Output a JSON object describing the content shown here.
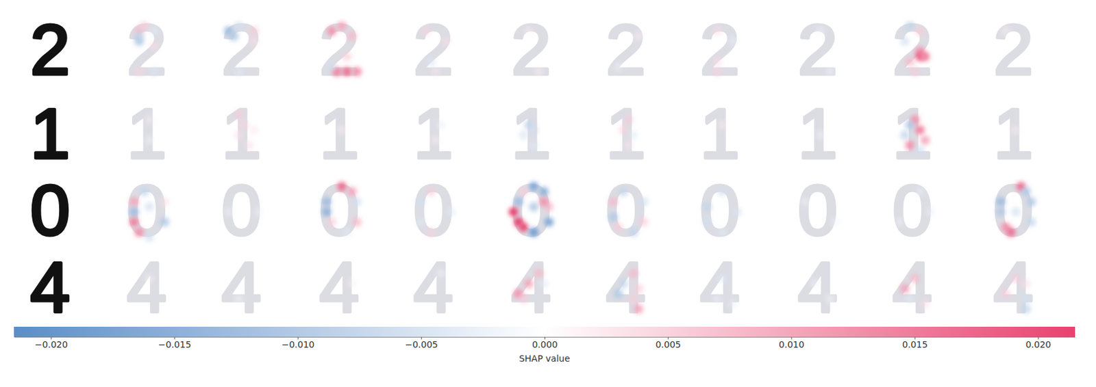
{
  "chart_data": {
    "type": "image_heatmap",
    "rows": [
      {
        "digit": "2",
        "panels": [
          [
            [
              3,
              5,
              0.008
            ],
            [
              2,
              6,
              0.006
            ],
            [
              4,
              5,
              -0.008
            ],
            [
              5,
              5,
              -0.01
            ],
            [
              3,
              8,
              -0.004
            ],
            [
              6,
              8,
              0.004
            ],
            [
              11,
              5,
              0.005
            ],
            [
              11,
              8,
              -0.005
            ]
          ],
          [
            [
              3,
              4,
              -0.012
            ],
            [
              4,
              5,
              -0.01
            ],
            [
              2,
              6,
              -0.006
            ],
            [
              3,
              9,
              0.006
            ],
            [
              5,
              9,
              0.004
            ],
            [
              11,
              6,
              -0.004
            ]
          ],
          [
            [
              3,
              5,
              0.012
            ],
            [
              2,
              7,
              0.01
            ],
            [
              4,
              9,
              0.008
            ],
            [
              8,
              8,
              0.006
            ],
            [
              11,
              6,
              0.014
            ],
            [
              11,
              8,
              0.016
            ],
            [
              11,
              10,
              0.012
            ],
            [
              10,
              5,
              -0.006
            ]
          ],
          [
            [
              3,
              5,
              0.005
            ],
            [
              5,
              9,
              0.004
            ],
            [
              9,
              6,
              -0.005
            ],
            [
              11,
              7,
              0.003
            ]
          ],
          [
            [
              3,
              6,
              0.002
            ],
            [
              11,
              8,
              0.002
            ]
          ],
          [
            [
              4,
              9,
              0.002
            ],
            [
              10,
              5,
              -0.002
            ]
          ],
          [
            [
              3,
              6,
              0.004
            ],
            [
              5,
              9,
              -0.003
            ],
            [
              11,
              6,
              0.005
            ],
            [
              9,
              6,
              0.004
            ]
          ],
          [
            [
              3,
              7,
              -0.002
            ],
            [
              11,
              9,
              -0.002
            ]
          ],
          [
            [
              2,
              6,
              -0.008
            ],
            [
              3,
              8,
              0.006
            ],
            [
              5,
              5,
              -0.006
            ],
            [
              7,
              8,
              0.012
            ],
            [
              8,
              8,
              0.018
            ],
            [
              8,
              9,
              0.014
            ],
            [
              9,
              6,
              0.008
            ],
            [
              11,
              7,
              0.006
            ]
          ],
          [
            [
              3,
              5,
              0.001
            ]
          ]
        ]
      },
      {
        "digit": "1",
        "panels": [
          [
            [
              4,
              7,
              0.002
            ],
            [
              8,
              7,
              -0.002
            ]
          ],
          [
            [
              3,
              6,
              0.006
            ],
            [
              5,
              7,
              0.005
            ],
            [
              7,
              6,
              0.004
            ],
            [
              9,
              8,
              0.004
            ],
            [
              6,
              9,
              0.003
            ]
          ],
          [
            [
              6,
              7,
              0.002
            ]
          ],
          [
            [
              5,
              8,
              -0.003
            ],
            [
              8,
              7,
              0.002
            ]
          ],
          [
            [
              5,
              6,
              -0.008
            ],
            [
              6,
              7,
              -0.006
            ],
            [
              7,
              5,
              -0.005
            ],
            [
              9,
              7,
              -0.004
            ]
          ],
          [
            [
              4,
              7,
              0.006
            ],
            [
              6,
              6,
              0.005
            ],
            [
              7,
              8,
              -0.004
            ],
            [
              9,
              7,
              0.003
            ]
          ],
          [
            [
              5,
              7,
              0.002
            ]
          ],
          [
            [
              7,
              7,
              -0.001
            ]
          ],
          [
            [
              4,
              7,
              0.012
            ],
            [
              5,
              6,
              -0.01
            ],
            [
              6,
              8,
              0.014
            ],
            [
              7,
              5,
              -0.008
            ],
            [
              8,
              9,
              0.01
            ],
            [
              9,
              6,
              0.012
            ],
            [
              10,
              8,
              -0.006
            ]
          ],
          [
            [
              6,
              7,
              0.002
            ]
          ]
        ]
      },
      {
        "digit": "0",
        "panels": [
          [
            [
              3,
              6,
              -0.008
            ],
            [
              5,
              4,
              0.01
            ],
            [
              7,
              4,
              -0.012
            ],
            [
              9,
              4,
              0.014
            ],
            [
              11,
              5,
              0.012
            ],
            [
              12,
              7,
              -0.006
            ],
            [
              9,
              10,
              -0.01
            ],
            [
              5,
              10,
              0.004
            ],
            [
              6,
              7,
              -0.006
            ]
          ],
          [
            [
              7,
              4,
              -0.002
            ],
            [
              7,
              10,
              -0.002
            ]
          ],
          [
            [
              2,
              7,
              0.016
            ],
            [
              3,
              9,
              0.01
            ],
            [
              5,
              4,
              -0.012
            ],
            [
              7,
              4,
              -0.014
            ],
            [
              9,
              5,
              0.006
            ],
            [
              9,
              10,
              0.008
            ],
            [
              5,
              10,
              -0.006
            ],
            [
              11,
              8,
              -0.004
            ]
          ],
          [
            [
              3,
              6,
              0.006
            ],
            [
              5,
              4,
              -0.006
            ],
            [
              9,
              4,
              -0.004
            ],
            [
              11,
              6,
              0.005
            ],
            [
              7,
              10,
              -0.004
            ]
          ],
          [
            [
              2,
              7,
              -0.016
            ],
            [
              3,
              9,
              -0.014
            ],
            [
              3,
              5,
              0.006
            ],
            [
              5,
              4,
              -0.012
            ],
            [
              7,
              3,
              0.022
            ],
            [
              9,
              4,
              0.022
            ],
            [
              10,
              5,
              0.02
            ],
            [
              11,
              7,
              -0.018
            ],
            [
              9,
              10,
              -0.016
            ],
            [
              6,
              10,
              0.008
            ],
            [
              6,
              7,
              -0.01
            ],
            [
              5,
              9,
              0.012
            ]
          ],
          [
            [
              3,
              6,
              -0.008
            ],
            [
              5,
              4,
              0.008
            ],
            [
              8,
              4,
              -0.01
            ],
            [
              10,
              5,
              0.006
            ],
            [
              11,
              8,
              -0.008
            ],
            [
              9,
              10,
              0.006
            ],
            [
              5,
              10,
              -0.006
            ]
          ],
          [
            [
              3,
              7,
              -0.006
            ],
            [
              6,
              4,
              -0.008
            ],
            [
              9,
              4,
              -0.006
            ],
            [
              11,
              7,
              -0.004
            ],
            [
              7,
              10,
              -0.005
            ]
          ],
          [
            [
              5,
              4,
              -0.002
            ],
            [
              9,
              10,
              -0.002
            ]
          ],
          [
            [
              3,
              8,
              -0.003
            ],
            [
              9,
              4,
              -0.002
            ],
            [
              7,
              10,
              -0.003
            ]
          ],
          [
            [
              2,
              8,
              0.016
            ],
            [
              3,
              9,
              -0.01
            ],
            [
              5,
              4,
              -0.012
            ],
            [
              7,
              4,
              -0.01
            ],
            [
              10,
              5,
              0.012
            ],
            [
              11,
              6,
              0.016
            ],
            [
              9,
              10,
              -0.008
            ],
            [
              5,
              10,
              -0.01
            ],
            [
              7,
              7,
              -0.006
            ]
          ]
        ]
      },
      {
        "digit": "4",
        "panels": [
          [
            [
              5,
              7,
              0.001
            ]
          ],
          [
            [
              9,
              6,
              -0.001
            ]
          ],
          [
            [
              6,
              9,
              0.002
            ]
          ],
          [
            [
              4,
              8,
              -0.002
            ]
          ],
          [
            [
              4,
              8,
              0.008
            ],
            [
              6,
              6,
              0.01
            ],
            [
              8,
              4,
              0.012
            ],
            [
              9,
              5,
              0.006
            ],
            [
              6,
              9,
              -0.004
            ]
          ],
          [
            [
              4,
              8,
              0.008
            ],
            [
              6,
              6,
              -0.008
            ],
            [
              8,
              5,
              -0.01
            ],
            [
              9,
              8,
              0.006
            ],
            [
              11,
              9,
              0.01
            ],
            [
              7,
              9,
              0.006
            ]
          ],
          [
            [
              5,
              7,
              -0.004
            ],
            [
              9,
              6,
              -0.003
            ],
            [
              10,
              9,
              -0.003
            ]
          ],
          [
            [
              6,
              6,
              -0.002
            ],
            [
              9,
              9,
              -0.001
            ]
          ],
          [
            [
              5,
              7,
              0.008
            ],
            [
              7,
              5,
              0.01
            ],
            [
              9,
              6,
              -0.004
            ],
            [
              10,
              9,
              0.004
            ]
          ],
          [
            [
              5,
              7,
              0.006
            ],
            [
              8,
              5,
              0.006
            ],
            [
              9,
              9,
              -0.006
            ],
            [
              11,
              9,
              -0.008
            ],
            [
              6,
              9,
              0.004
            ]
          ]
        ]
      }
    ],
    "color_range": [
      -0.0215,
      0.0215
    ],
    "color_ticks": [
      {
        "value": -0.02,
        "label": "−0.020"
      },
      {
        "value": -0.015,
        "label": "−0.015"
      },
      {
        "value": -0.01,
        "label": "−0.010"
      },
      {
        "value": -0.005,
        "label": "−0.005"
      },
      {
        "value": 0,
        "label": "0.000"
      },
      {
        "value": 0.005,
        "label": "0.005"
      },
      {
        "value": 0.01,
        "label": "0.010"
      },
      {
        "value": 0.015,
        "label": "0.015"
      },
      {
        "value": 0.02,
        "label": "0.020"
      }
    ],
    "colorbar_label": "SHAP value"
  }
}
